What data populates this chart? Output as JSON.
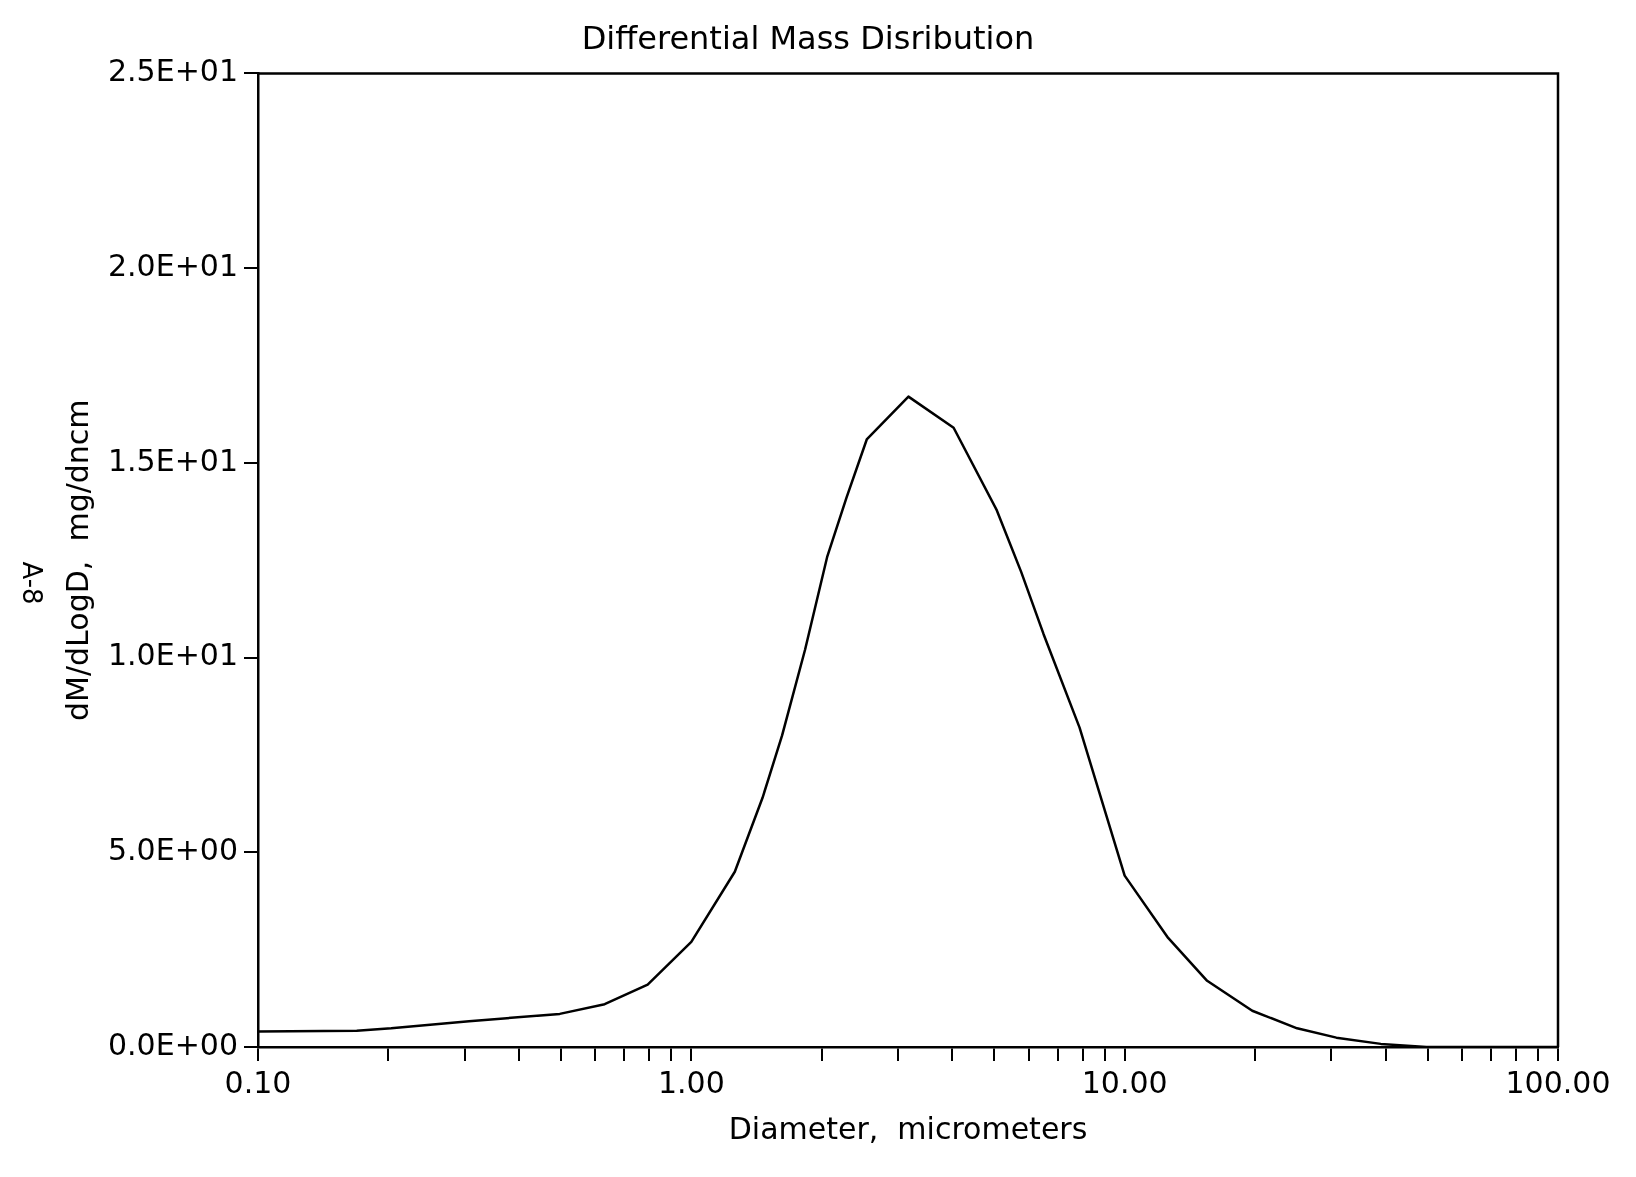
{
  "chart_data": {
    "type": "line",
    "title": "Differential Mass Disribution",
    "xlabel": "Diameter,  micrometers",
    "ylabel": "dM/dLogD,  mg/dncm",
    "annotations": [
      "A-8"
    ],
    "x": [
      0.1,
      0.169,
      0.203,
      0.307,
      0.497,
      0.631,
      0.793,
      1.0,
      1.26,
      1.46,
      1.62,
      1.83,
      2.06,
      2.28,
      2.54,
      3.17,
      4.03,
      5.06,
      5.77,
      6.5,
      7.87,
      10,
      12.6,
      15.5,
      19.7,
      25,
      30.8,
      39,
      49.7,
      100
    ],
    "series": [
      {
        "color": "#000000",
        "values": [
          0.4,
          0.42,
          0.48,
          0.66,
          0.85,
          1.1,
          1.6,
          2.7,
          4.5,
          6.4,
          8.0,
          10.2,
          12.6,
          14.1,
          15.6,
          16.7,
          15.9,
          13.8,
          12.2,
          10.6,
          8.2,
          4.4,
          2.8,
          1.7,
          0.93,
          0.48,
          0.24,
          0.08,
          0.0,
          0.0
        ]
      }
    ],
    "log": "x",
    "xlim": [
      0.1,
      100
    ],
    "xticks": [
      {
        "value": 0.1,
        "label": "0.10"
      },
      {
        "value": 0.2,
        "label": null
      },
      {
        "value": 0.3,
        "label": null
      },
      {
        "value": 0.4,
        "label": null
      },
      {
        "value": 0.5,
        "label": null
      },
      {
        "value": 0.6,
        "label": null
      },
      {
        "value": 0.7,
        "label": null
      },
      {
        "value": 0.8,
        "label": null
      },
      {
        "value": 0.9,
        "label": null
      },
      {
        "value": 1,
        "label": "1.00"
      },
      {
        "value": 2,
        "label": null
      },
      {
        "value": 3,
        "label": null
      },
      {
        "value": 4,
        "label": null
      },
      {
        "value": 5,
        "label": null
      },
      {
        "value": 6,
        "label": null
      },
      {
        "value": 7,
        "label": null
      },
      {
        "value": 8,
        "label": null
      },
      {
        "value": 9,
        "label": null
      },
      {
        "value": 10,
        "label": "10.00"
      },
      {
        "value": 20,
        "label": null
      },
      {
        "value": 30,
        "label": null
      },
      {
        "value": 40,
        "label": null
      },
      {
        "value": 50,
        "label": null
      },
      {
        "value": 60,
        "label": null
      },
      {
        "value": 70,
        "label": null
      },
      {
        "value": 80,
        "label": null
      },
      {
        "value": 90,
        "label": null
      },
      {
        "value": 100,
        "label": "100.00"
      }
    ],
    "ylim": [
      0,
      25
    ],
    "yticks": [
      {
        "value": 0,
        "label": "0.0E+00"
      },
      {
        "value": 5,
        "label": "5.0E+00"
      },
      {
        "value": 10,
        "label": "1.0E+01"
      },
      {
        "value": 15,
        "label": "1.5E+01"
      },
      {
        "value": 20,
        "label": "2.0E+01"
      },
      {
        "value": 25,
        "label": "2.5E+01"
      }
    ],
    "grid": false,
    "legend": false,
    "marker": "none",
    "line_style": "solid"
  }
}
